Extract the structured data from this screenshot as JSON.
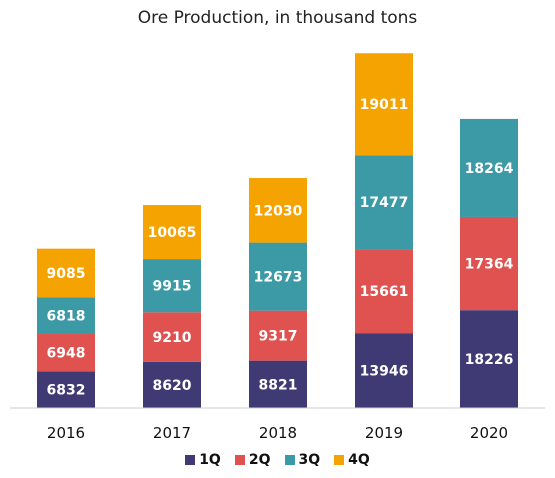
{
  "chart_data": {
    "type": "bar",
    "stacked": true,
    "title": "Ore Production, in thousand tons",
    "categories": [
      "2016",
      "2017",
      "2018",
      "2019",
      "2020"
    ],
    "series": [
      {
        "name": "1Q",
        "color": "#3f3a74",
        "values": [
          6832,
          8620,
          8821,
          13946,
          18226
        ]
      },
      {
        "name": "2Q",
        "color": "#e0524f",
        "values": [
          6948,
          9210,
          9317,
          15661,
          17364
        ]
      },
      {
        "name": "3Q",
        "color": "#3b9aa5",
        "values": [
          6818,
          9915,
          12673,
          17477,
          18264
        ]
      },
      {
        "name": "4Q",
        "color": "#f5a300",
        "values": [
          9085,
          10065,
          12030,
          19011,
          null
        ]
      }
    ],
    "legend_position": "bottom",
    "grid": false,
    "ylim": [
      0,
      68000
    ]
  }
}
